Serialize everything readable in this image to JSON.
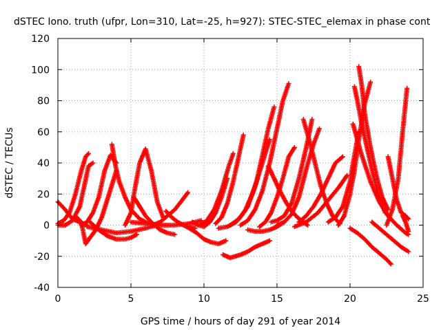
{
  "chart_data": {
    "type": "scatter",
    "title": "dSTEC Iono. truth (ufpr, Lon=310, Lat=-25, h=927): STEC-STEC_elemax in phase cont",
    "xlabel": "GPS time / hours of day 291 of year 2014",
    "ylabel": "dSTEC  / TECUs",
    "xlim": [
      0,
      25
    ],
    "ylim": [
      -40,
      120
    ],
    "x_ticks": [
      0,
      5,
      10,
      15,
      20,
      25
    ],
    "y_ticks": [
      -40,
      -20,
      0,
      20,
      40,
      60,
      80,
      100,
      120
    ],
    "x_tick_labels": [
      "0",
      "5",
      "10",
      "15",
      "20",
      "25"
    ],
    "y_tick_labels": [
      "-40",
      "-20",
      "0",
      "20",
      "40",
      "60",
      "80",
      "100",
      "120"
    ],
    "grid": true,
    "marker": "plus",
    "color": "#ff0000",
    "series": [
      {
        "x": [
          0.0,
          0.5,
          1.0,
          1.5,
          2.0
        ],
        "y": [
          15,
          10,
          4,
          2,
          0
        ]
      },
      {
        "x": [
          0.0,
          0.4,
          0.8,
          1.2,
          1.6,
          1.9,
          2.1
        ],
        "y": [
          1,
          3,
          8,
          20,
          35,
          44,
          46
        ]
      },
      {
        "x": [
          0.0,
          0.5,
          1.0,
          1.5,
          1.8,
          2.1,
          2.4
        ],
        "y": [
          0,
          0,
          3,
          12,
          25,
          38,
          40
        ]
      },
      {
        "x": [
          1.3,
          1.6,
          1.9,
          2.2,
          2.6,
          3.0,
          3.5,
          4.0
        ],
        "y": [
          5,
          2,
          -12,
          -8,
          -3,
          5,
          20,
          35
        ]
      },
      {
        "x": [
          1.6,
          2.0,
          2.4,
          2.8,
          3.2,
          3.6,
          4.0
        ],
        "y": [
          0,
          2,
          8,
          18,
          35,
          45,
          40
        ]
      },
      {
        "x": [
          2.2,
          2.8,
          3.4,
          4.0,
          4.6,
          5.0,
          5.4
        ],
        "y": [
          2,
          -3,
          -7,
          -9,
          -9,
          -8,
          -6
        ]
      },
      {
        "x": [
          2.0,
          3.0,
          4.0,
          5.0,
          6.0,
          6.8
        ],
        "y": [
          -1,
          -3,
          -5,
          -4,
          -2,
          0
        ]
      },
      {
        "x": [
          3.7,
          3.9,
          4.2,
          4.6,
          5.0,
          5.6,
          6.2
        ],
        "y": [
          52,
          40,
          28,
          18,
          10,
          4,
          1
        ]
      },
      {
        "x": [
          4.6,
          5.0,
          5.3,
          5.6,
          6.0,
          6.4,
          6.8,
          7.2
        ],
        "y": [
          0,
          8,
          25,
          40,
          49,
          35,
          15,
          5
        ]
      },
      {
        "x": [
          5.2,
          5.6,
          6.0,
          6.5,
          7.0,
          7.5,
          8.0
        ],
        "y": [
          18,
          12,
          6,
          1,
          -3,
          -5,
          -6
        ]
      },
      {
        "x": [
          5.0,
          6.0,
          7.0,
          8.0,
          9.0,
          9.8
        ],
        "y": [
          2,
          1,
          0,
          0,
          1,
          3
        ]
      },
      {
        "x": [
          6.5,
          7.0,
          7.5,
          8.0,
          8.5,
          8.9
        ],
        "y": [
          0,
          2,
          6,
          10,
          16,
          21
        ]
      },
      {
        "x": [
          7.4,
          7.8,
          8.2,
          8.6,
          9.0,
          9.4
        ],
        "y": [
          9,
          5,
          2,
          0,
          -1,
          -2
        ]
      },
      {
        "x": [
          8.6,
          9.0,
          9.5,
          10.0,
          10.5,
          11.0,
          11.5
        ],
        "y": [
          0,
          -2,
          -5,
          -9,
          -11,
          -12,
          -10
        ]
      },
      {
        "x": [
          9.2,
          9.6,
          10.0,
          10.4,
          10.8,
          11.2,
          11.6
        ],
        "y": [
          2,
          0,
          -1,
          2,
          8,
          18,
          30
        ]
      },
      {
        "x": [
          9.7,
          10.2,
          10.7,
          11.2,
          11.7,
          12.0
        ],
        "y": [
          0,
          3,
          10,
          22,
          38,
          46
        ]
      },
      {
        "x": [
          10.8,
          11.2,
          11.6,
          12.0,
          12.4,
          12.7
        ],
        "y": [
          1,
          5,
          14,
          28,
          45,
          58
        ]
      },
      {
        "x": [
          11.3,
          11.8,
          12.5,
          13.0,
          13.5,
          14.0,
          14.5
        ],
        "y": [
          -19,
          -21,
          -19,
          -17,
          -14,
          -12,
          -10
        ]
      },
      {
        "x": [
          11.0,
          11.6,
          12.2,
          12.8,
          13.4,
          14.0,
          14.5
        ],
        "y": [
          -2,
          -1,
          2,
          9,
          22,
          40,
          55
        ]
      },
      {
        "x": [
          11.8,
          12.4,
          13.0,
          13.6,
          14.0,
          14.4,
          14.8
        ],
        "y": [
          0,
          4,
          12,
          28,
          45,
          62,
          76
        ]
      },
      {
        "x": [
          12.5,
          13.0,
          13.5,
          14.0,
          14.5,
          15.0,
          15.4,
          15.8
        ],
        "y": [
          0,
          3,
          10,
          22,
          40,
          62,
          80,
          91
        ]
      },
      {
        "x": [
          13.0,
          13.5,
          14.0,
          14.5,
          15.0,
          15.5
        ],
        "y": [
          -3,
          -4,
          -4,
          -3,
          -1,
          2
        ]
      },
      {
        "x": [
          13.8,
          14.2,
          14.6,
          15.0,
          15.4,
          15.8,
          16.2
        ],
        "y": [
          -1,
          2,
          8,
          18,
          30,
          44,
          50
        ]
      },
      {
        "x": [
          14.4,
          14.8,
          15.2,
          15.6,
          16.0,
          16.4,
          16.8,
          17.1
        ],
        "y": [
          38,
          30,
          22,
          15,
          9,
          5,
          2,
          0
        ]
      },
      {
        "x": [
          14.6,
          15.0,
          15.5,
          16.0,
          16.5,
          17.0,
          17.4
        ],
        "y": [
          2,
          3,
          6,
          14,
          30,
          50,
          68
        ]
      },
      {
        "x": [
          15.0,
          15.5,
          16.0,
          16.5,
          17.0,
          17.5,
          17.9
        ],
        "y": [
          0,
          2,
          7,
          18,
          36,
          52,
          62
        ]
      },
      {
        "x": [
          16.8,
          17.2,
          17.6,
          18.0,
          18.4,
          18.8,
          19.3
        ],
        "y": [
          68,
          55,
          40,
          25,
          14,
          6,
          1
        ]
      },
      {
        "x": [
          16.5,
          17.0,
          17.5,
          18.0,
          18.5,
          19.0,
          19.5
        ],
        "y": [
          2,
          6,
          12,
          20,
          30,
          40,
          44
        ]
      },
      {
        "x": [
          16.2,
          17.0,
          17.8,
          18.5,
          19.2,
          19.8
        ],
        "y": [
          -1,
          2,
          8,
          16,
          24,
          32
        ]
      },
      {
        "x": [
          18.5,
          19.0,
          19.5,
          20.0,
          20.3,
          20.6
        ],
        "y": [
          2,
          5,
          12,
          28,
          45,
          60
        ]
      },
      {
        "x": [
          19.2,
          19.6,
          20.0,
          20.3,
          20.6,
          21.0,
          21.4
        ],
        "y": [
          0,
          6,
          20,
          35,
          55,
          78,
          92
        ]
      },
      {
        "x": [
          20.3,
          20.5,
          20.8,
          21.2,
          21.6,
          22.0,
          22.4
        ],
        "y": [
          89,
          80,
          65,
          48,
          32,
          18,
          8
        ]
      },
      {
        "x": [
          20.6,
          20.8,
          21.0,
          21.4,
          21.8,
          22.2,
          22.6
        ],
        "y": [
          102,
          90,
          72,
          50,
          32,
          18,
          10
        ]
      },
      {
        "x": [
          20.0,
          20.5,
          21.0,
          21.5,
          22.0,
          22.5,
          22.8
        ],
        "y": [
          -2,
          -5,
          -9,
          -14,
          -18,
          -22,
          -25
        ]
      },
      {
        "x": [
          20.2,
          20.8,
          21.4,
          22.0,
          22.6,
          23.2,
          23.8,
          24.0
        ],
        "y": [
          65,
          45,
          28,
          15,
          6,
          0,
          -5,
          -6
        ]
      },
      {
        "x": [
          21.5,
          22.0,
          22.5,
          23.0,
          23.5,
          24.0
        ],
        "y": [
          2,
          -2,
          -6,
          -10,
          -14,
          -17
        ]
      },
      {
        "x": [
          22.6,
          22.9,
          23.2,
          23.5,
          23.8,
          24.0
        ],
        "y": [
          44,
          30,
          16,
          8,
          6,
          4
        ]
      },
      {
        "x": [
          22.5,
          22.9,
          23.3,
          23.6,
          23.9
        ],
        "y": [
          0,
          10,
          30,
          60,
          88
        ]
      },
      {
        "x": [
          23.6,
          23.8,
          24.0
        ],
        "y": [
          6,
          2,
          -4
        ]
      }
    ]
  }
}
